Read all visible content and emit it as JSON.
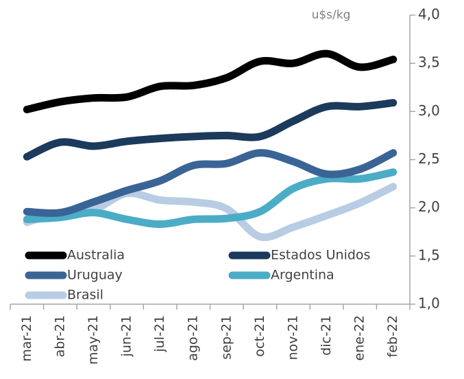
{
  "chart_data": {
    "type": "line",
    "y_axis_label": "u$s/kg",
    "categories": [
      "mar-21",
      "abr-21",
      "may-21",
      "jun-21",
      "jul-21",
      "ago-21",
      "sep-21",
      "oct-21",
      "nov-21",
      "dic-21",
      "ene-22",
      "feb-22"
    ],
    "series": [
      {
        "name": "Australia",
        "color": "#000000",
        "values": [
          3.02,
          3.1,
          3.14,
          3.15,
          3.26,
          3.27,
          3.35,
          3.52,
          3.5,
          3.6,
          3.46,
          3.54
        ]
      },
      {
        "name": "Estados Unidos",
        "color": "#1b3a5c",
        "values": [
          2.53,
          2.68,
          2.64,
          2.69,
          2.72,
          2.74,
          2.75,
          2.74,
          2.9,
          3.05,
          3.05,
          3.09
        ]
      },
      {
        "name": "Uruguay",
        "color": "#3a6496",
        "values": [
          1.96,
          1.95,
          2.06,
          2.18,
          2.28,
          2.44,
          2.46,
          2.57,
          2.48,
          2.35,
          2.4,
          2.57
        ]
      },
      {
        "name": "Argentina",
        "color": "#4bacc6",
        "values": [
          1.88,
          1.9,
          1.95,
          1.88,
          1.83,
          1.88,
          1.89,
          1.96,
          2.2,
          2.3,
          2.3,
          2.37
        ]
      },
      {
        "name": "Brasil",
        "color": "#b8cce4",
        "values": [
          1.85,
          1.95,
          1.98,
          2.15,
          2.08,
          2.06,
          1.99,
          1.7,
          1.8,
          1.92,
          2.05,
          2.22
        ]
      }
    ],
    "ylim": [
      1.0,
      4.0
    ],
    "yticks": [
      {
        "value": 1.0,
        "label": "1,0"
      },
      {
        "value": 1.5,
        "label": "1,5"
      },
      {
        "value": 2.0,
        "label": "2,0"
      },
      {
        "value": 2.5,
        "label": "2,5"
      },
      {
        "value": 3.0,
        "label": "3,0"
      },
      {
        "value": 3.5,
        "label": "3,5"
      },
      {
        "value": 4.0,
        "label": "4,0"
      }
    ],
    "y_axis_side": "right",
    "legend": "bottom-left"
  }
}
